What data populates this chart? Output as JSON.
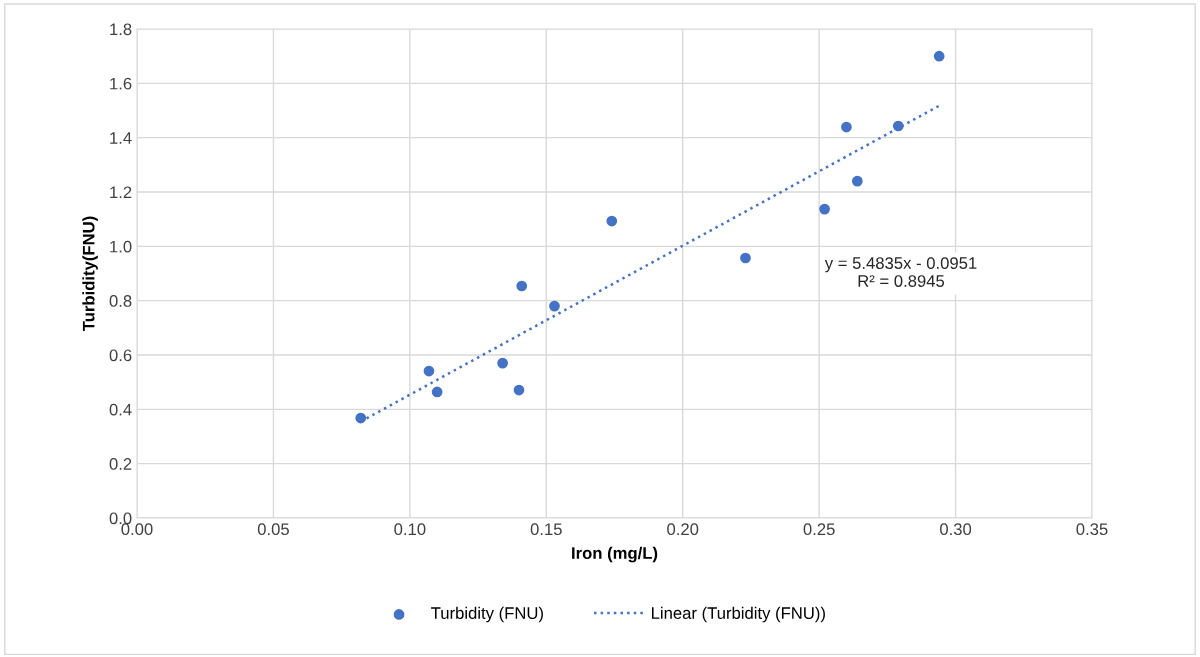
{
  "chart_data": {
    "type": "scatter",
    "xlabel": "Iron (mg/L)",
    "ylabel": "Turbidity(FNU)",
    "xlim": [
      0,
      0.35
    ],
    "xticks": [
      {
        "value": 0,
        "label": "0.00"
      },
      {
        "value": 0.05,
        "label": "0.05"
      },
      {
        "value": 0.1,
        "label": "0.10"
      },
      {
        "value": 0.15,
        "label": "0.15"
      },
      {
        "value": 0.2,
        "label": "0.20"
      },
      {
        "value": 0.25,
        "label": "0.25"
      },
      {
        "value": 0.3,
        "label": "0.30"
      },
      {
        "value": 0.35,
        "label": "0.35"
      }
    ],
    "ylim": [
      0,
      1.8
    ],
    "yticks": [
      {
        "value": 0,
        "label": "0.0"
      },
      {
        "value": 0.2,
        "label": "0.2"
      },
      {
        "value": 0.4,
        "label": "0.4"
      },
      {
        "value": 0.6,
        "label": "0.6"
      },
      {
        "value": 0.8,
        "label": "0.8"
      },
      {
        "value": 1.0,
        "label": "1.0"
      },
      {
        "value": 1.2,
        "label": "1.2"
      },
      {
        "value": 1.4,
        "label": "1.4"
      },
      {
        "value": 1.6,
        "label": "1.6"
      },
      {
        "value": 1.8,
        "label": "1.8"
      }
    ],
    "grid": true,
    "legend": "bottom",
    "series": [
      {
        "name": "Turbidity (FNU)",
        "color": "#4472c4",
        "marker": "circle",
        "x": [
          0.082,
          0.107,
          0.11,
          0.134,
          0.14,
          0.141,
          0.153,
          0.174,
          0.223,
          0.252,
          0.26,
          0.264,
          0.279,
          0.294
        ],
        "values": [
          0.368,
          0.541,
          0.464,
          0.57,
          0.471,
          0.854,
          0.78,
          1.093,
          0.957,
          1.137,
          1.439,
          1.24,
          1.443,
          1.7
        ]
      },
      {
        "name": "Linear (Turbidity (FNU))",
        "color": "#4472c4",
        "type": "line",
        "line_style": "dotted",
        "marker": "none",
        "x": [
          0.082,
          0.295
        ],
        "values": [
          0.355,
          1.523
        ]
      }
    ],
    "annotations": [
      "y = 5.4835x - 0.0951\nR² = 0.8945"
    ]
  }
}
